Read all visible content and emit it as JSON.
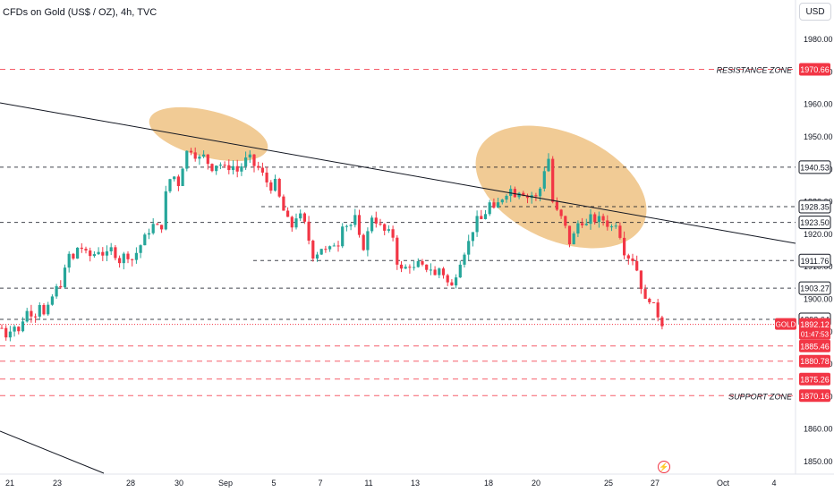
{
  "header": {
    "symbol": "CFDs on Gold (US$ / OZ)",
    "interval": "4h",
    "source": "TVC"
  },
  "currency": "USD",
  "colors": {
    "up": "#26a69a",
    "down": "#f23645",
    "highlight": "#e8a94e",
    "trendline": "#131722"
  },
  "icons": [
    "lightning-icon"
  ],
  "chart_data": {
    "type": "candlestick",
    "symbol": "GOLD",
    "ylim": [
      1846,
      1992
    ],
    "y_ticks": [
      1850,
      1860,
      1870,
      1880,
      1890,
      1900,
      1910,
      1920,
      1930,
      1940,
      1950,
      1960,
      1970,
      1980
    ],
    "x_ticks": [
      "21",
      "23",
      "28",
      "30",
      "Sep",
      "5",
      "7",
      "11",
      "13",
      "18",
      "20",
      "25",
      "27",
      "Oct",
      "4"
    ],
    "price_levels": [
      {
        "value": "1970.66",
        "label": "RESISTANCE ZONE",
        "color": "#f23645",
        "style": "dashed"
      },
      {
        "value": "1940.53",
        "label": "",
        "color": "#131722",
        "style": "dashed"
      },
      {
        "value": "1928.35",
        "label": "",
        "color": "#131722",
        "style": "dashed"
      },
      {
        "value": "1923.50",
        "label": "",
        "color": "#131722",
        "style": "dashed"
      },
      {
        "value": "1911.76",
        "label": "",
        "color": "#131722",
        "style": "dashed"
      },
      {
        "value": "1903.27",
        "label": "",
        "color": "#131722",
        "style": "dashed"
      },
      {
        "value": "1893.64",
        "label": "",
        "color": "#131722",
        "style": "dashed"
      },
      {
        "value": "1885.46",
        "label": "",
        "color": "#f23645",
        "style": "dashed"
      },
      {
        "value": "1880.78",
        "label": "",
        "color": "#f23645",
        "style": "dashed"
      },
      {
        "value": "1875.26",
        "label": "",
        "color": "#f23645",
        "style": "dashed"
      },
      {
        "value": "1870.16",
        "label": "SUPPORT ZONE",
        "color": "#f23645",
        "style": "dashed"
      }
    ],
    "current_price": {
      "label": "GOLD",
      "value": "1892.12",
      "countdown": "01:47:53"
    },
    "anchors": [
      {
        "x": 2,
        "y": 1891
      },
      {
        "x": 8,
        "y": 1888
      },
      {
        "x": 14,
        "y": 1893
      },
      {
        "x": 20,
        "y": 1889
      },
      {
        "x": 26,
        "y": 1894
      },
      {
        "x": 32,
        "y": 1897
      },
      {
        "x": 38,
        "y": 1894
      },
      {
        "x": 44,
        "y": 1899
      },
      {
        "x": 50,
        "y": 1894
      },
      {
        "x": 56,
        "y": 1899
      },
      {
        "x": 62,
        "y": 1903
      },
      {
        "x": 70,
        "y": 1905
      },
      {
        "x": 76,
        "y": 1914
      },
      {
        "x": 82,
        "y": 1912
      },
      {
        "x": 88,
        "y": 1917
      },
      {
        "x": 95,
        "y": 1914
      },
      {
        "x": 102,
        "y": 1913
      },
      {
        "x": 110,
        "y": 1915
      },
      {
        "x": 118,
        "y": 1913
      },
      {
        "x": 126,
        "y": 1916
      },
      {
        "x": 132,
        "y": 1911
      },
      {
        "x": 140,
        "y": 1914
      },
      {
        "x": 148,
        "y": 1912
      },
      {
        "x": 156,
        "y": 1916
      },
      {
        "x": 164,
        "y": 1920
      },
      {
        "x": 172,
        "y": 1923
      },
      {
        "x": 180,
        "y": 1921
      },
      {
        "x": 187,
        "y": 1936
      },
      {
        "x": 194,
        "y": 1938
      },
      {
        "x": 200,
        "y": 1935
      },
      {
        "x": 207,
        "y": 1945
      },
      {
        "x": 214,
        "y": 1946
      },
      {
        "x": 221,
        "y": 1943
      },
      {
        "x": 228,
        "y": 1944
      },
      {
        "x": 236,
        "y": 1940
      },
      {
        "x": 244,
        "y": 1942
      },
      {
        "x": 252,
        "y": 1940
      },
      {
        "x": 260,
        "y": 1941
      },
      {
        "x": 266,
        "y": 1939
      },
      {
        "x": 272,
        "y": 1942
      },
      {
        "x": 278,
        "y": 1944
      },
      {
        "x": 284,
        "y": 1941
      },
      {
        "x": 290,
        "y": 1940
      },
      {
        "x": 296,
        "y": 1937
      },
      {
        "x": 302,
        "y": 1934
      },
      {
        "x": 308,
        "y": 1936
      },
      {
        "x": 314,
        "y": 1929
      },
      {
        "x": 320,
        "y": 1925
      },
      {
        "x": 326,
        "y": 1922
      },
      {
        "x": 332,
        "y": 1926
      },
      {
        "x": 338,
        "y": 1925
      },
      {
        "x": 344,
        "y": 1920
      },
      {
        "x": 348,
        "y": 1913
      },
      {
        "x": 354,
        "y": 1914
      },
      {
        "x": 360,
        "y": 1916
      },
      {
        "x": 366,
        "y": 1914
      },
      {
        "x": 372,
        "y": 1917
      },
      {
        "x": 378,
        "y": 1917
      },
      {
        "x": 384,
        "y": 1925
      },
      {
        "x": 390,
        "y": 1921
      },
      {
        "x": 396,
        "y": 1926
      },
      {
        "x": 402,
        "y": 1918
      },
      {
        "x": 408,
        "y": 1915
      },
      {
        "x": 414,
        "y": 1926
      },
      {
        "x": 420,
        "y": 1924
      },
      {
        "x": 426,
        "y": 1922
      },
      {
        "x": 432,
        "y": 1920
      },
      {
        "x": 438,
        "y": 1921
      },
      {
        "x": 444,
        "y": 1911
      },
      {
        "x": 450,
        "y": 1908
      },
      {
        "x": 456,
        "y": 1911
      },
      {
        "x": 462,
        "y": 1909
      },
      {
        "x": 468,
        "y": 1911
      },
      {
        "x": 474,
        "y": 1909
      },
      {
        "x": 480,
        "y": 1910
      },
      {
        "x": 486,
        "y": 1907
      },
      {
        "x": 492,
        "y": 1910
      },
      {
        "x": 498,
        "y": 1906
      },
      {
        "x": 504,
        "y": 1903
      },
      {
        "x": 510,
        "y": 1908
      },
      {
        "x": 516,
        "y": 1913
      },
      {
        "x": 522,
        "y": 1916
      },
      {
        "x": 528,
        "y": 1921
      },
      {
        "x": 534,
        "y": 1925
      },
      {
        "x": 540,
        "y": 1924
      },
      {
        "x": 546,
        "y": 1930
      },
      {
        "x": 552,
        "y": 1927
      },
      {
        "x": 558,
        "y": 1930
      },
      {
        "x": 564,
        "y": 1932
      },
      {
        "x": 570,
        "y": 1934
      },
      {
        "x": 576,
        "y": 1932
      },
      {
        "x": 582,
        "y": 1934
      },
      {
        "x": 588,
        "y": 1931
      },
      {
        "x": 594,
        "y": 1932
      },
      {
        "x": 600,
        "y": 1931
      },
      {
        "x": 606,
        "y": 1936
      },
      {
        "x": 612,
        "y": 1946
      },
      {
        "x": 618,
        "y": 1929
      },
      {
        "x": 624,
        "y": 1926
      },
      {
        "x": 630,
        "y": 1924
      },
      {
        "x": 636,
        "y": 1917
      },
      {
        "x": 642,
        "y": 1920
      },
      {
        "x": 648,
        "y": 1925
      },
      {
        "x": 654,
        "y": 1922
      },
      {
        "x": 660,
        "y": 1925
      },
      {
        "x": 666,
        "y": 1924
      },
      {
        "x": 672,
        "y": 1925
      },
      {
        "x": 678,
        "y": 1923
      },
      {
        "x": 684,
        "y": 1922
      },
      {
        "x": 690,
        "y": 1924
      },
      {
        "x": 696,
        "y": 1915
      },
      {
        "x": 702,
        "y": 1913
      },
      {
        "x": 708,
        "y": 1912
      },
      {
        "x": 714,
        "y": 1907
      },
      {
        "x": 720,
        "y": 1899
      },
      {
        "x": 726,
        "y": 1900
      },
      {
        "x": 732,
        "y": 1897
      },
      {
        "x": 738,
        "y": 1893
      },
      {
        "x": 741,
        "y": 1892
      }
    ]
  }
}
